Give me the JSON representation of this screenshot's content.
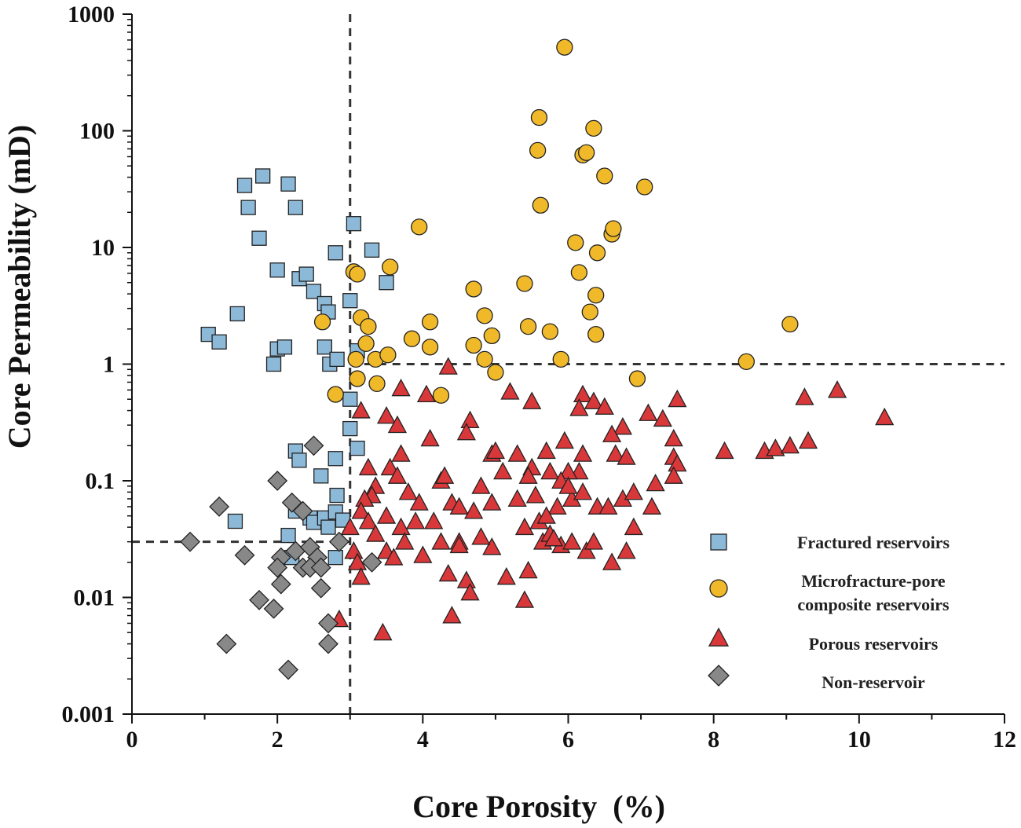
{
  "chart_data": {
    "type": "scatter",
    "title": "",
    "xlabel": "Core Porosity  (%)",
    "ylabel": "Core Permeability (mD)",
    "xlim": [
      0,
      12
    ],
    "ylim": [
      0.001,
      1000
    ],
    "yscale": "log",
    "xticks": [
      0,
      2,
      4,
      6,
      8,
      10,
      12
    ],
    "xtick_labels": [
      "0",
      "2",
      "4",
      "6",
      "8",
      "10",
      "12"
    ],
    "yticks": [
      0.001,
      0.01,
      0.1,
      1,
      10,
      100,
      1000
    ],
    "ytick_labels": [
      "0.001",
      "0.01",
      "0.1",
      "1",
      "10",
      "100",
      "1000"
    ],
    "reference_lines": [
      {
        "orientation": "vertical",
        "x": 3,
        "y_from": 0.001,
        "y_to": 1000
      },
      {
        "orientation": "horizontal",
        "y": 1,
        "x_from": 3,
        "x_to": 12
      },
      {
        "orientation": "horizontal",
        "y": 0.03,
        "x_from": 0,
        "x_to": 3
      }
    ],
    "legend_position": "bottom-right",
    "series": [
      {
        "name": "Fractured reservoirs",
        "marker": "square",
        "color": "#8db9d8",
        "points": [
          [
            1.05,
            1.8
          ],
          [
            1.2,
            1.55
          ],
          [
            1.45,
            2.7
          ],
          [
            1.55,
            34
          ],
          [
            1.6,
            22
          ],
          [
            1.75,
            12
          ],
          [
            1.8,
            41
          ],
          [
            2.15,
            35
          ],
          [
            2.25,
            22
          ],
          [
            2.0,
            6.4
          ],
          [
            2.3,
            5.4
          ],
          [
            2.4,
            5.9
          ],
          [
            2.5,
            4.2
          ],
          [
            2.65,
            3.3
          ],
          [
            2.7,
            2.8
          ],
          [
            1.95,
            1.0
          ],
          [
            2.0,
            1.35
          ],
          [
            2.1,
            1.4
          ],
          [
            2.65,
            1.4
          ],
          [
            2.72,
            1.0
          ],
          [
            2.82,
            1.1
          ],
          [
            2.8,
            9.0
          ],
          [
            3.0,
            3.5
          ],
          [
            3.05,
            16
          ],
          [
            3.3,
            9.5
          ],
          [
            3.5,
            5.0
          ],
          [
            3.1,
            1.3
          ],
          [
            3.0,
            0.5
          ],
          [
            3.0,
            0.28
          ],
          [
            3.1,
            0.19
          ],
          [
            2.25,
            0.18
          ],
          [
            2.3,
            0.15
          ],
          [
            2.6,
            0.11
          ],
          [
            2.8,
            0.155
          ],
          [
            2.82,
            0.075
          ],
          [
            2.25,
            0.055
          ],
          [
            2.45,
            0.048
          ],
          [
            2.5,
            0.044
          ],
          [
            2.65,
            0.048
          ],
          [
            2.7,
            0.04
          ],
          [
            2.8,
            0.054
          ],
          [
            2.9,
            0.046
          ],
          [
            2.15,
            0.034
          ],
          [
            2.2,
            0.022
          ],
          [
            2.8,
            0.022
          ],
          [
            1.42,
            0.045
          ]
        ]
      },
      {
        "name": "Microfracture-pore composite reservoirs",
        "marker": "circle",
        "color": "#f0b929",
        "points": [
          [
            5.95,
            520
          ],
          [
            5.6,
            130
          ],
          [
            5.58,
            68
          ],
          [
            5.62,
            23
          ],
          [
            6.35,
            105
          ],
          [
            6.2,
            62
          ],
          [
            6.25,
            65
          ],
          [
            6.5,
            41
          ],
          [
            7.05,
            33
          ],
          [
            3.95,
            15
          ],
          [
            6.1,
            11
          ],
          [
            6.6,
            13
          ],
          [
            6.62,
            14.5
          ],
          [
            6.4,
            9
          ],
          [
            3.05,
            6.2
          ],
          [
            3.1,
            5.9
          ],
          [
            3.55,
            6.8
          ],
          [
            5.4,
            4.9
          ],
          [
            4.7,
            4.4
          ],
          [
            6.15,
            6.1
          ],
          [
            6.38,
            3.9
          ],
          [
            6.3,
            2.8
          ],
          [
            2.62,
            2.3
          ],
          [
            3.15,
            2.5
          ],
          [
            3.25,
            2.1
          ],
          [
            4.1,
            2.3
          ],
          [
            4.85,
            2.6
          ],
          [
            5.45,
            2.1
          ],
          [
            5.75,
            1.9
          ],
          [
            6.38,
            1.8
          ],
          [
            9.05,
            2.2
          ],
          [
            3.85,
            1.65
          ],
          [
            4.1,
            1.4
          ],
          [
            4.7,
            1.45
          ],
          [
            3.22,
            1.5
          ],
          [
            3.35,
            1.1
          ],
          [
            3.08,
            1.1
          ],
          [
            4.85,
            1.1
          ],
          [
            5.9,
            1.1
          ],
          [
            8.45,
            1.05
          ],
          [
            4.95,
            1.75
          ],
          [
            5.0,
            0.85
          ],
          [
            6.95,
            0.75
          ],
          [
            3.1,
            0.75
          ],
          [
            3.37,
            0.68
          ],
          [
            2.8,
            0.55
          ],
          [
            4.25,
            0.54
          ],
          [
            3.52,
            1.2
          ]
        ]
      },
      {
        "name": "Porous reservoirs",
        "marker": "triangle",
        "color": "#d9383a",
        "points": [
          [
            4.35,
            0.95
          ],
          [
            3.7,
            0.62
          ],
          [
            4.05,
            0.55
          ],
          [
            5.2,
            0.58
          ],
          [
            5.5,
            0.48
          ],
          [
            6.2,
            0.55
          ],
          [
            6.35,
            0.48
          ],
          [
            6.5,
            0.43
          ],
          [
            6.15,
            0.42
          ],
          [
            7.5,
            0.5
          ],
          [
            9.7,
            0.6
          ],
          [
            9.25,
            0.52
          ],
          [
            10.35,
            0.35
          ],
          [
            3.15,
            0.4
          ],
          [
            3.5,
            0.36
          ],
          [
            3.65,
            0.3
          ],
          [
            4.65,
            0.33
          ],
          [
            4.6,
            0.26
          ],
          [
            4.1,
            0.23
          ],
          [
            7.1,
            0.38
          ],
          [
            7.3,
            0.34
          ],
          [
            6.75,
            0.29
          ],
          [
            6.6,
            0.25
          ],
          [
            7.45,
            0.23
          ],
          [
            8.15,
            0.18
          ],
          [
            8.7,
            0.18
          ],
          [
            8.85,
            0.19
          ],
          [
            9.05,
            0.2
          ],
          [
            9.3,
            0.22
          ],
          [
            3.7,
            0.17
          ],
          [
            3.25,
            0.13
          ],
          [
            3.55,
            0.13
          ],
          [
            3.65,
            0.11
          ],
          [
            4.25,
            0.1
          ],
          [
            4.3,
            0.11
          ],
          [
            4.95,
            0.17
          ],
          [
            5.0,
            0.18
          ],
          [
            5.3,
            0.17
          ],
          [
            5.7,
            0.18
          ],
          [
            5.95,
            0.22
          ],
          [
            6.2,
            0.17
          ],
          [
            6.15,
            0.12
          ],
          [
            6.0,
            0.12
          ],
          [
            5.75,
            0.12
          ],
          [
            5.5,
            0.13
          ],
          [
            5.45,
            0.11
          ],
          [
            5.1,
            0.12
          ],
          [
            4.8,
            0.09
          ],
          [
            6.65,
            0.17
          ],
          [
            6.8,
            0.16
          ],
          [
            7.45,
            0.16
          ],
          [
            7.5,
            0.14
          ],
          [
            7.45,
            0.11
          ],
          [
            3.35,
            0.09
          ],
          [
            3.8,
            0.08
          ],
          [
            3.95,
            0.065
          ],
          [
            3.3,
            0.075
          ],
          [
            3.2,
            0.07
          ],
          [
            3.15,
            0.055
          ],
          [
            3.25,
            0.045
          ],
          [
            3.5,
            0.05
          ],
          [
            3.7,
            0.04
          ],
          [
            4.15,
            0.045
          ],
          [
            4.4,
            0.065
          ],
          [
            4.5,
            0.06
          ],
          [
            4.7,
            0.055
          ],
          [
            4.95,
            0.065
          ],
          [
            5.3,
            0.07
          ],
          [
            5.55,
            0.075
          ],
          [
            5.85,
            0.06
          ],
          [
            6.05,
            0.07
          ],
          [
            6.4,
            0.06
          ],
          [
            6.55,
            0.06
          ],
          [
            6.75,
            0.07
          ],
          [
            6.9,
            0.08
          ],
          [
            7.2,
            0.095
          ],
          [
            7.15,
            0.06
          ],
          [
            6.2,
            0.08
          ],
          [
            5.9,
            0.1
          ],
          [
            6.0,
            0.09
          ],
          [
            3.0,
            0.04
          ],
          [
            3.05,
            0.025
          ],
          [
            3.1,
            0.02
          ],
          [
            3.15,
            0.015
          ],
          [
            3.35,
            0.035
          ],
          [
            3.5,
            0.025
          ],
          [
            3.6,
            0.022
          ],
          [
            3.75,
            0.03
          ],
          [
            4.0,
            0.023
          ],
          [
            4.25,
            0.03
          ],
          [
            4.35,
            0.016
          ],
          [
            4.5,
            0.03
          ],
          [
            4.6,
            0.014
          ],
          [
            4.65,
            0.011
          ],
          [
            4.95,
            0.027
          ],
          [
            5.15,
            0.015
          ],
          [
            5.4,
            0.0095
          ],
          [
            5.45,
            0.017
          ],
          [
            5.65,
            0.03
          ],
          [
            5.75,
            0.035
          ],
          [
            5.9,
            0.028
          ],
          [
            6.05,
            0.03
          ],
          [
            6.25,
            0.025
          ],
          [
            6.35,
            0.03
          ],
          [
            6.6,
            0.02
          ],
          [
            6.8,
            0.025
          ],
          [
            6.9,
            0.04
          ],
          [
            4.4,
            0.007
          ],
          [
            3.45,
            0.005
          ],
          [
            2.85,
            0.0065
          ],
          [
            5.4,
            0.04
          ],
          [
            5.6,
            0.045
          ],
          [
            5.7,
            0.05
          ],
          [
            5.8,
            0.032
          ],
          [
            4.8,
            0.033
          ],
          [
            4.5,
            0.028
          ],
          [
            3.9,
            0.045
          ]
        ]
      },
      {
        "name": "Non-reservoir",
        "marker": "diamond",
        "color": "#888888",
        "points": [
          [
            0.8,
            0.03
          ],
          [
            1.2,
            0.06
          ],
          [
            1.55,
            0.023
          ],
          [
            2.0,
            0.1
          ],
          [
            2.2,
            0.065
          ],
          [
            2.35,
            0.055
          ],
          [
            2.5,
            0.2
          ],
          [
            2.05,
            0.022
          ],
          [
            2.0,
            0.018
          ],
          [
            2.25,
            0.025
          ],
          [
            2.35,
            0.018
          ],
          [
            2.45,
            0.027
          ],
          [
            2.55,
            0.022
          ],
          [
            2.45,
            0.018
          ],
          [
            2.6,
            0.018
          ],
          [
            2.6,
            0.012
          ],
          [
            2.05,
            0.013
          ],
          [
            1.75,
            0.0095
          ],
          [
            1.95,
            0.008
          ],
          [
            2.7,
            0.006
          ],
          [
            2.7,
            0.004
          ],
          [
            1.3,
            0.004
          ],
          [
            2.15,
            0.0024
          ],
          [
            2.85,
            0.03
          ],
          [
            3.3,
            0.02
          ]
        ]
      }
    ]
  }
}
